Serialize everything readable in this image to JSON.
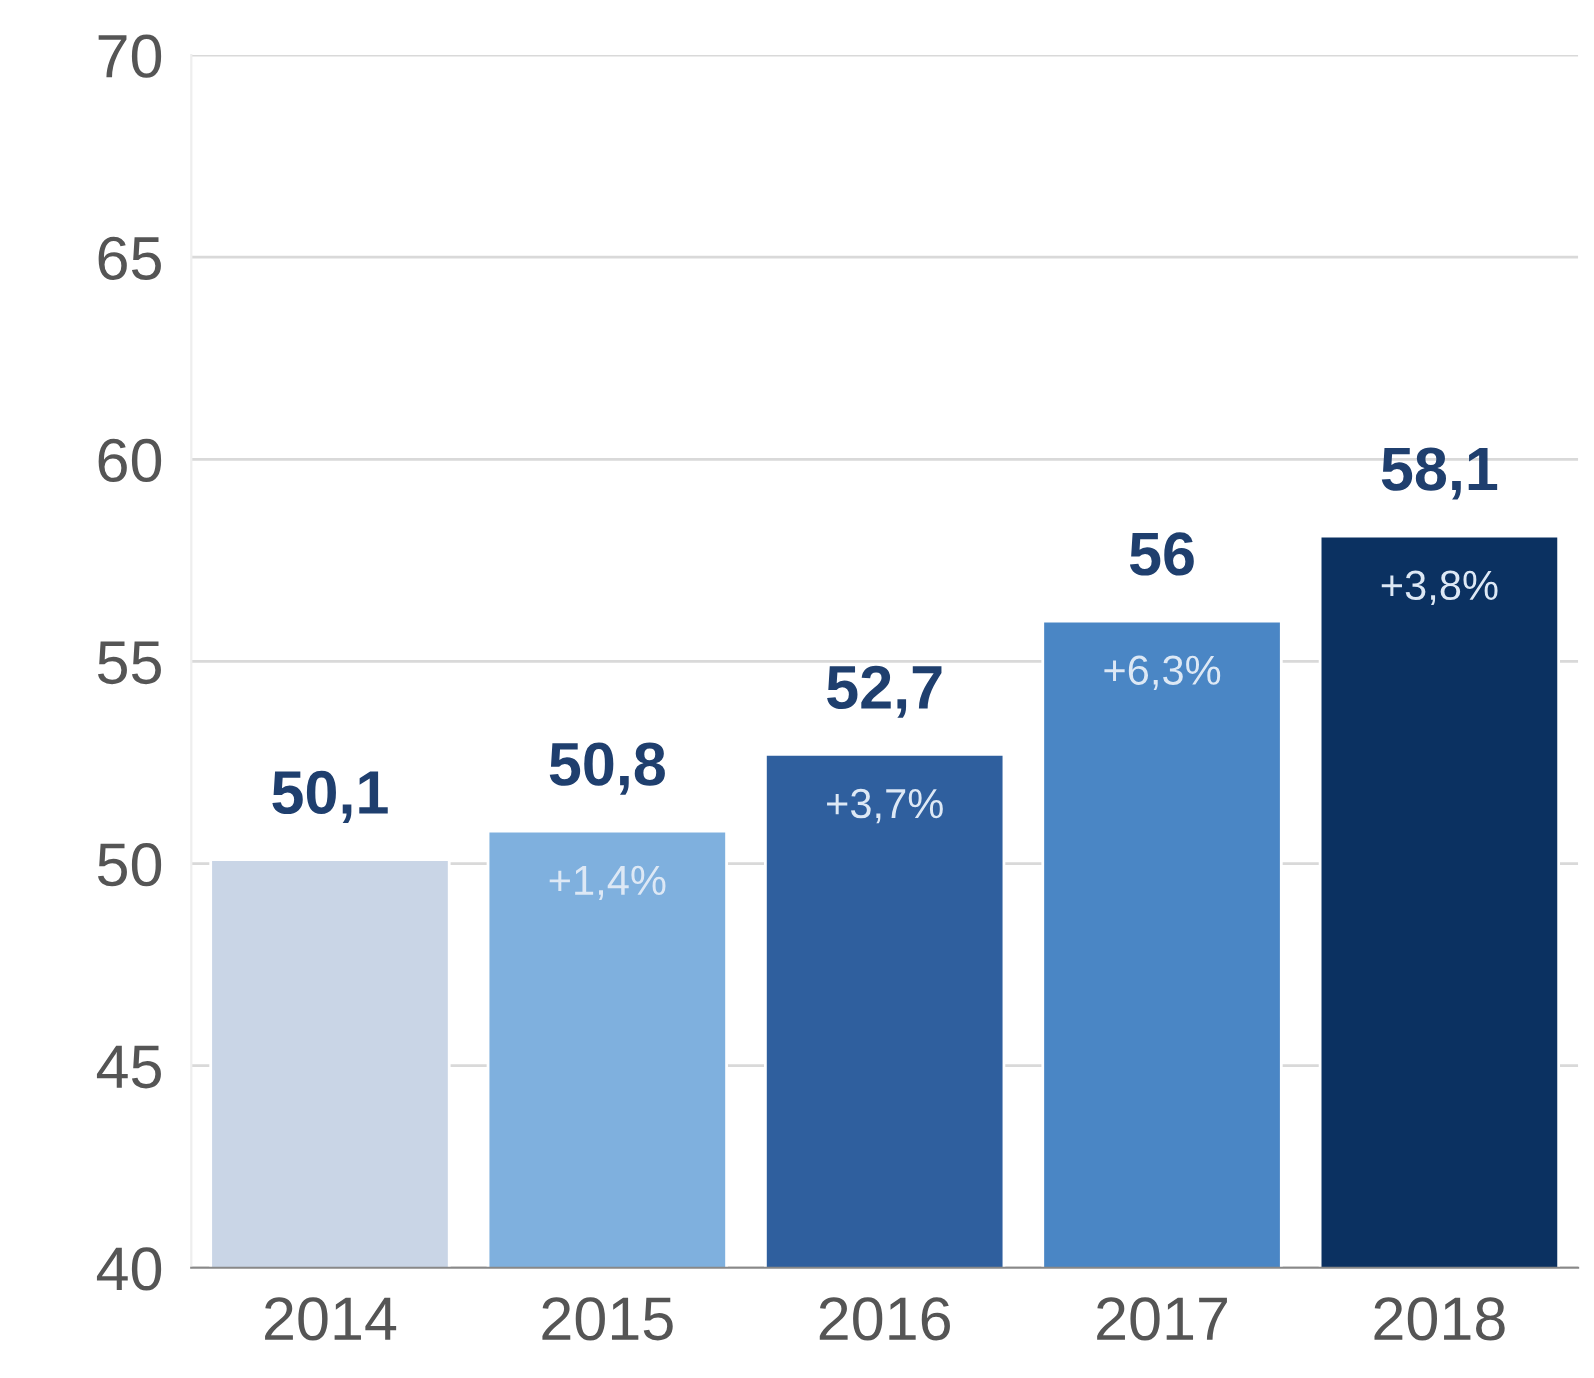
{
  "chart_data": {
    "type": "bar",
    "categories": [
      "2014",
      "2015",
      "2016",
      "2017",
      "2018"
    ],
    "values": [
      50.1,
      50.8,
      52.7,
      56,
      58.1
    ],
    "colors": [
      "#c9d5e6",
      "#7fb0de",
      "#2f5f9e",
      "#4a86c5",
      "#0b3161"
    ],
    "value_labels": [
      "50,1",
      "50,8",
      "52,7",
      "56",
      "58,1"
    ],
    "annotations": [
      {
        "text": "+1,4%",
        "x": "2015",
        "y": 50.8
      },
      {
        "text": "+3,7%",
        "x": "2016",
        "y": 52.7
      },
      {
        "text": "+6,3%",
        "x": "2017",
        "y": 56
      },
      {
        "text": "+3,8%",
        "x": "2018",
        "y": 58.1
      }
    ],
    "ylim": [
      40,
      70
    ],
    "yticks": [
      40,
      45,
      50,
      55,
      60,
      65,
      70
    ],
    "grid": "y",
    "legend": false
  }
}
